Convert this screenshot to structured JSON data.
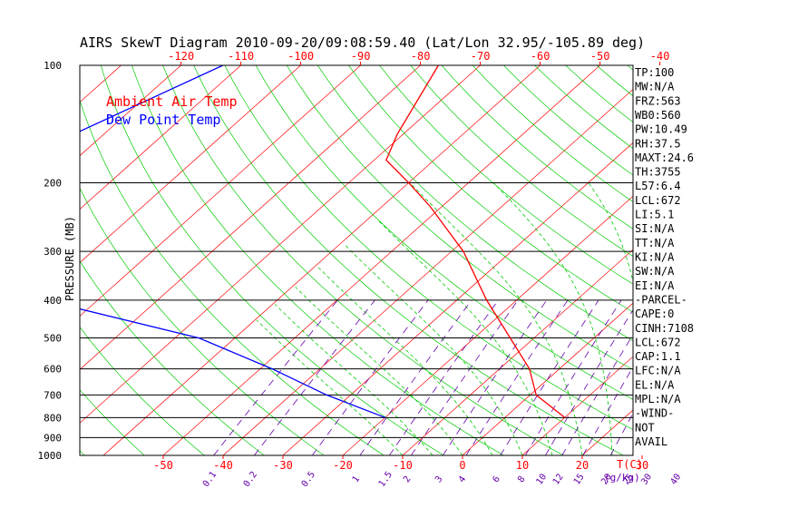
{
  "chart_data": {
    "type": "line",
    "subtype": "skew-t log-p diagram",
    "title": "AIRS SkewT Diagram 2010-09-20/09:08:59.40 (Lat/Lon 32.95/-105.89 deg)",
    "ylabel": "PRESSURE (MB)",
    "xlabel_right": "T(C)",
    "mixing_ratio_label": "(g/kg)",
    "y_scale": "log",
    "ylim": [
      1000,
      100
    ],
    "pressure_ticks": [
      100,
      200,
      300,
      400,
      500,
      600,
      700,
      800,
      900,
      1000
    ],
    "pressure_lines": [
      200,
      300,
      400,
      500,
      600,
      700,
      800,
      900
    ],
    "top_temp_ticks": [
      -120,
      -110,
      -100,
      -90,
      -80,
      -70,
      -60,
      -50,
      -40
    ],
    "bottom_temp_ticks": [
      -50,
      -40,
      -30,
      -20,
      -10,
      0,
      10,
      20,
      30
    ],
    "mixing_ratio_ticks": [
      "0.1",
      "0.2",
      "0.5",
      "1",
      "1.5",
      "2",
      "3",
      "4",
      "6",
      "8",
      "10",
      "12",
      "15",
      "20",
      "25",
      "30",
      "40"
    ],
    "legend": [
      {
        "label": "Ambient Air Temp",
        "color": "#ff0000"
      },
      {
        "label": "Dew Point Temp",
        "color": "#0000ff"
      }
    ],
    "series": [
      {
        "name": "Ambient Air Temp",
        "color": "#ff0000",
        "points": [
          [
            100,
            -77
          ],
          [
            150,
            -71
          ],
          [
            175,
            -68
          ],
          [
            200,
            -60
          ],
          [
            230,
            -52
          ],
          [
            300,
            -38
          ],
          [
            400,
            -25
          ],
          [
            500,
            -14
          ],
          [
            600,
            -5
          ],
          [
            700,
            1
          ],
          [
            800,
            10
          ]
        ]
      },
      {
        "name": "Dew Point Temp",
        "color": "#0000ff",
        "points": [
          [
            100,
            -113
          ],
          [
            150,
            -125
          ],
          [
            200,
            -132
          ],
          [
            240,
            -140
          ],
          [
            300,
            -129
          ],
          [
            400,
            -99
          ],
          [
            500,
            -66
          ],
          [
            600,
            -48
          ],
          [
            700,
            -34
          ],
          [
            800,
            -20
          ]
        ]
      }
    ],
    "side_panel": [
      "TP:100",
      "MW:N/A",
      "FRZ:563",
      "WB0:560",
      "PW:10.49",
      "RH:37.5",
      "MAXT:24.6",
      "TH:3755",
      "L57:6.4",
      "LCL:672",
      "LI:5.1",
      "SI:N/A",
      "TT:N/A",
      "KI:N/A",
      "SW:N/A",
      "EI:N/A",
      "-PARCEL-",
      "CAPE:0",
      "CINH:7108",
      "LCL:672",
      "CAP:1.1",
      "LFC:N/A",
      "EL:N/A",
      "MPL:N/A",
      "-WIND-",
      "NOT",
      "AVAIL"
    ],
    "colors": {
      "temperature": "#ff0000",
      "dewpoint": "#0000ff",
      "isotherm": "#ff0000",
      "dry_adiabat": "#00cc00",
      "moist_adiabat": "#00cc00",
      "mixing_ratio": "#6600aa",
      "axis": "#000000"
    }
  }
}
